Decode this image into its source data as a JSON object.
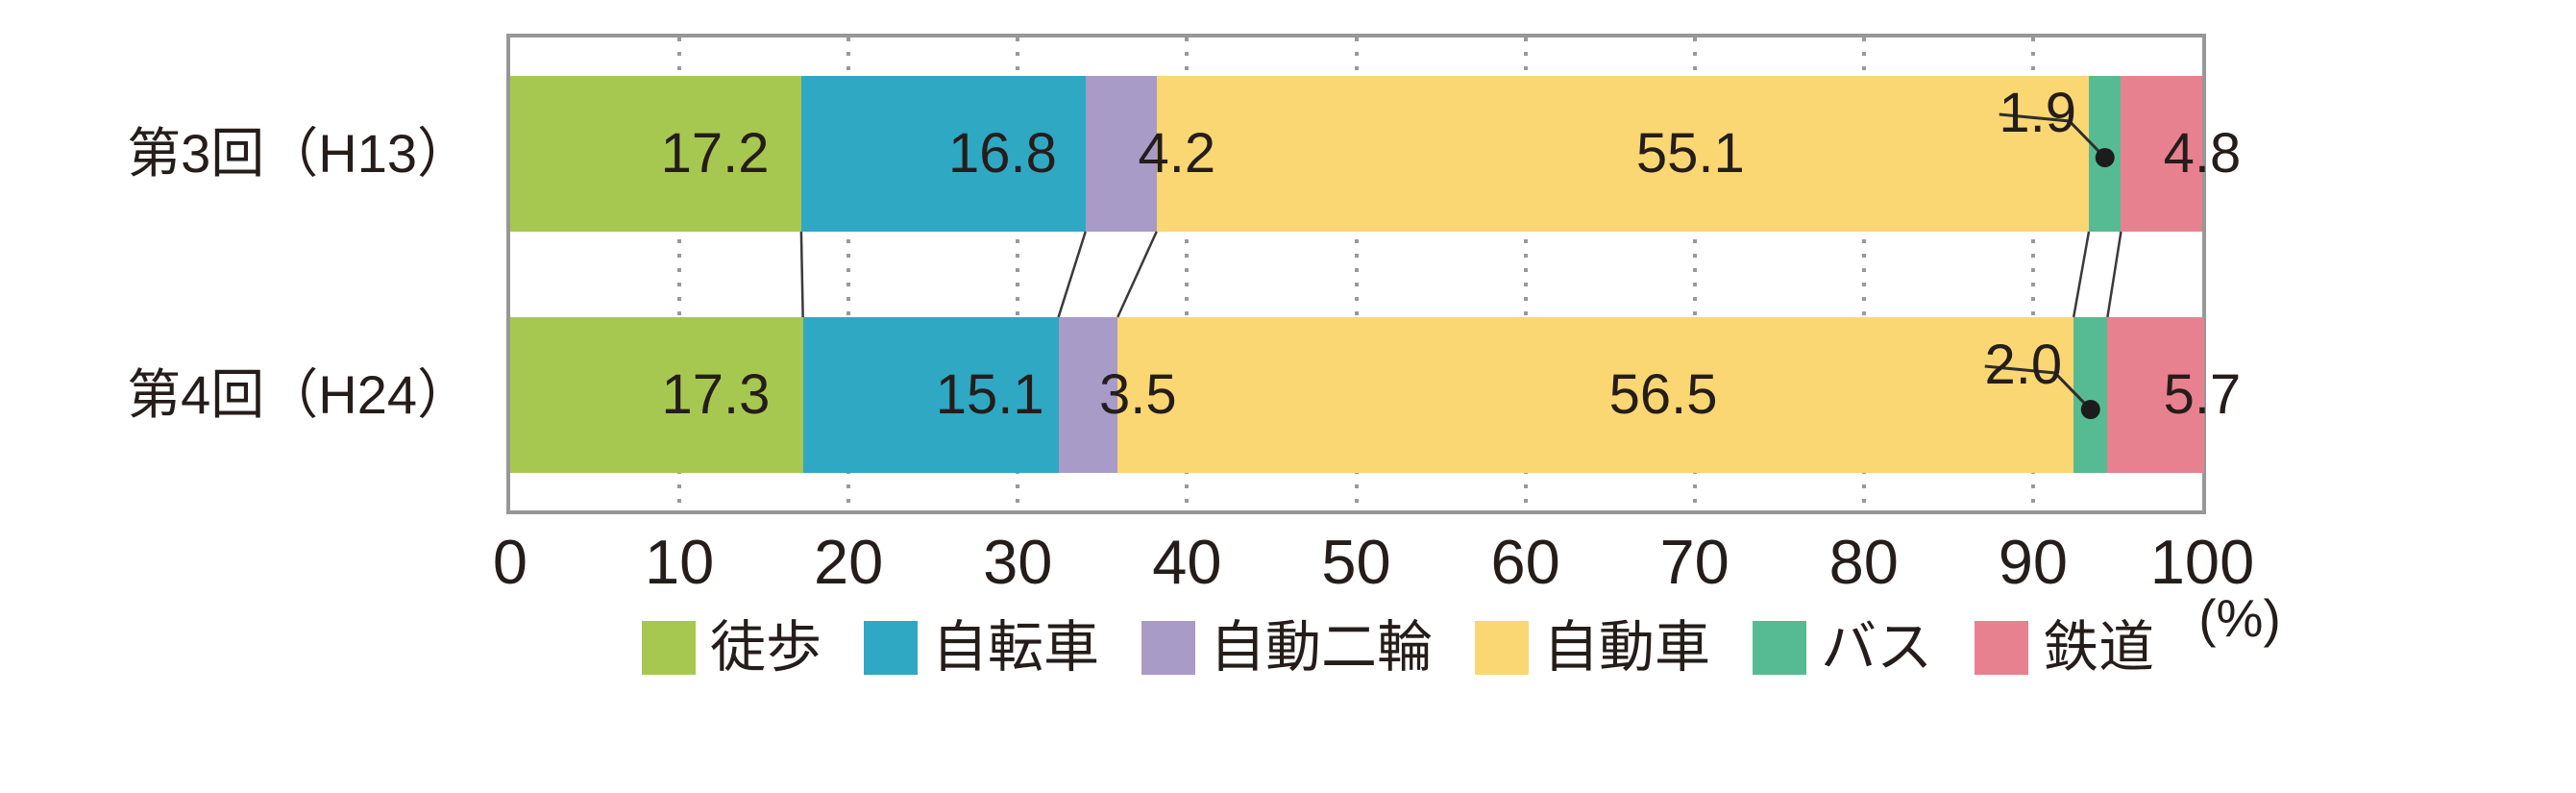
{
  "chart_data": {
    "type": "bar",
    "subtype": "horizontal-stacked",
    "title": "",
    "unit_label": "(%)",
    "categories": [
      "第3回（H13）",
      "第4回（H24）"
    ],
    "series": [
      {
        "name": "徒歩",
        "color": "#A7C850",
        "values": [
          17.2,
          17.3
        ],
        "labels": [
          "17.2",
          "17.3"
        ]
      },
      {
        "name": "自転車",
        "color": "#2EA8C3",
        "values": [
          16.8,
          15.1
        ],
        "labels": [
          "16.8",
          "15.1"
        ]
      },
      {
        "name": "自動二輪",
        "color": "#A89BC8",
        "values": [
          4.2,
          3.5
        ],
        "labels": [
          "4.2",
          "3.5"
        ]
      },
      {
        "name": "自動車",
        "color": "#FAD773",
        "values": [
          55.1,
          56.5
        ],
        "labels": [
          "55.1",
          "56.5"
        ]
      },
      {
        "name": "バス",
        "color": "#56BB92",
        "values": [
          1.9,
          2.0
        ],
        "labels": [
          "1.9",
          "2.0"
        ]
      },
      {
        "name": "鉄道",
        "color": "#E8818F",
        "values": [
          4.8,
          5.7
        ],
        "labels": [
          "4.8",
          "5.7"
        ]
      }
    ],
    "xlim": [
      0,
      100
    ],
    "xticks": [
      "0",
      "10",
      "20",
      "30",
      "40",
      "50",
      "60",
      "70",
      "80",
      "90",
      "100"
    ],
    "legend_position": "bottom",
    "grid": "vertical-dotted",
    "annotations": "small segments (バス) labeled with leader line and dot; 鉄道 labeled outside right edge; segment boundaries of the two bars joined by thin connector lines"
  }
}
